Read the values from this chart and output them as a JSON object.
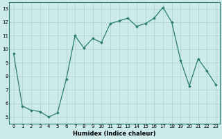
{
  "x": [
    0,
    1,
    2,
    3,
    4,
    5,
    6,
    7,
    8,
    9,
    10,
    11,
    12,
    13,
    14,
    15,
    16,
    17,
    18,
    19,
    20,
    21,
    22,
    23
  ],
  "y": [
    9.7,
    5.8,
    5.5,
    5.4,
    5.0,
    5.3,
    7.8,
    11.0,
    10.1,
    10.8,
    10.5,
    11.9,
    12.1,
    12.3,
    11.7,
    11.9,
    12.3,
    13.1,
    12.0,
    9.2,
    7.3,
    9.3,
    8.4,
    7.4
  ],
  "xlabel": "Humidex (Indice chaleur)",
  "ylim": [
    4.5,
    13.5
  ],
  "xlim": [
    -0.5,
    23.5
  ],
  "yticks": [
    5,
    6,
    7,
    8,
    9,
    10,
    11,
    12,
    13
  ],
  "xticks": [
    0,
    1,
    2,
    3,
    4,
    5,
    6,
    7,
    8,
    9,
    10,
    11,
    12,
    13,
    14,
    15,
    16,
    17,
    18,
    19,
    20,
    21,
    22,
    23
  ],
  "line_color": "#2a7d6e",
  "marker": "D",
  "marker_size": 1.8,
  "bg_color": "#cceaea",
  "grid_color": "#b0d4d4",
  "spine_color": "#2a7d6e",
  "tick_label_fontsize": 5.0,
  "xlabel_fontsize": 6.0,
  "linewidth": 0.9
}
